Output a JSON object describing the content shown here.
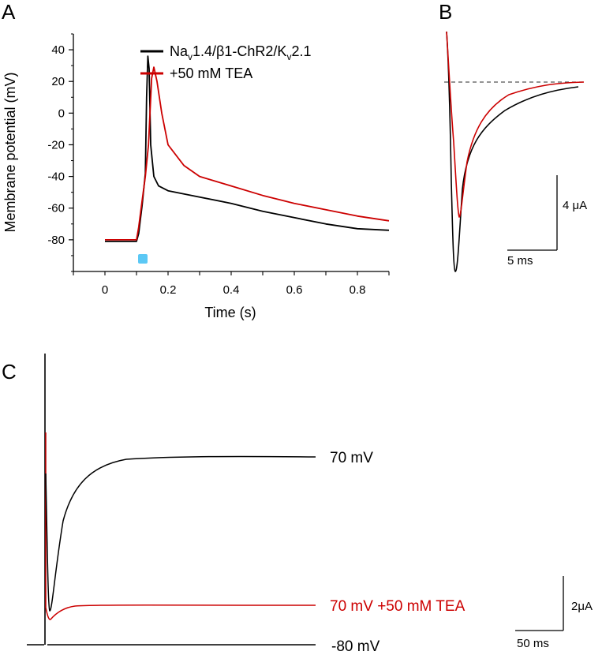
{
  "panels": {
    "a": "A",
    "b": "B",
    "c": "C"
  },
  "colors": {
    "control": "#000000",
    "tea": "#cc0000",
    "stimulus": "#5bc8f5"
  },
  "chart_data": [
    {
      "panel": "A",
      "type": "line",
      "xlabel": "Time (s)",
      "ylabel": "Membrane potential (mV)",
      "xlim": [
        -0.1,
        0.9
      ],
      "ylim": [
        -100,
        50
      ],
      "x_ticks": [
        0,
        0.2,
        0.4,
        0.6,
        0.8
      ],
      "x_tick_labels": [
        "0",
        "0.2",
        "0.4",
        "0.6",
        "0.8"
      ],
      "y_ticks": [
        40,
        20,
        0,
        -20,
        -40,
        -60,
        -80
      ],
      "y_tick_labels": [
        "40",
        "20",
        "0",
        "-20",
        "-40",
        "-60",
        "-80"
      ],
      "stimulus": {
        "x": 0.12,
        "y": -92
      },
      "legend": {
        "placement": "top-right",
        "entries": [
          {
            "pre": "Na",
            "sub1": "v",
            "mid": "1.4/β1-ChR2/K",
            "sub2": "v",
            "post": "2.1"
          },
          {
            "text": "+50 mM TEA"
          }
        ]
      },
      "series": [
        {
          "color": "#000000",
          "x": [
            0,
            0.1,
            0.107,
            0.118,
            0.128,
            0.132,
            0.136,
            0.14,
            0.145,
            0.155,
            0.17,
            0.2,
            0.3,
            0.4,
            0.5,
            0.6,
            0.7,
            0.8,
            0.9
          ],
          "y": [
            -81,
            -81,
            -76,
            -58,
            -38,
            10,
            36,
            28,
            -20,
            -40,
            -46,
            -49,
            -53,
            -57,
            -62,
            -66,
            -70,
            -73,
            -74
          ]
        },
        {
          "color": "#cc0000",
          "x": [
            0,
            0.1,
            0.107,
            0.118,
            0.128,
            0.138,
            0.148,
            0.155,
            0.165,
            0.18,
            0.2,
            0.25,
            0.3,
            0.4,
            0.5,
            0.6,
            0.7,
            0.8,
            0.9
          ],
          "y": [
            -80,
            -80,
            -72,
            -55,
            -40,
            -20,
            22,
            29,
            20,
            0,
            -20,
            -33,
            -40,
            -46,
            -52,
            -57,
            -61,
            -65,
            -68
          ]
        }
      ]
    },
    {
      "panel": "B",
      "type": "line",
      "scale_bars": {
        "y_label": "4 μA",
        "x_label": "5 ms"
      }
    },
    {
      "panel": "C",
      "type": "line",
      "scale_bars": {
        "y_label": "2μA",
        "x_label": "50 ms"
      },
      "trace_labels": [
        "70 mV",
        "70 mV +50 mM TEA",
        "-80 mV"
      ]
    }
  ]
}
